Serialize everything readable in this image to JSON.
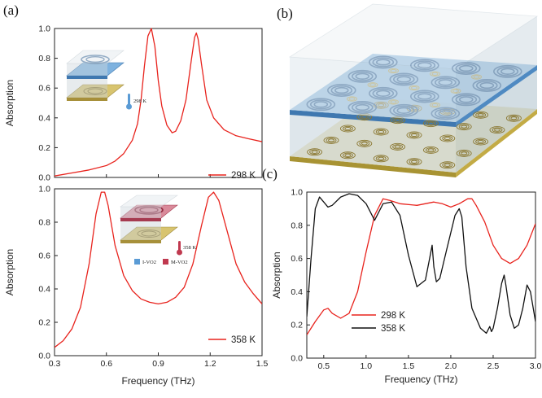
{
  "panels": {
    "a": "(a)",
    "b": "(b)",
    "c": "(c)"
  },
  "inset_top_label": "298 K",
  "inset_bottom_label": "358 K",
  "inset_legend": [
    "I-VO2",
    "M-VO2"
  ],
  "colors": {
    "red": "#e8231d",
    "black": "#111111",
    "lvo2": "#5a9bd5",
    "mvo2": "#c0394f"
  },
  "chart_data": [
    {
      "type": "line",
      "panel": "(a) top",
      "ylabel": "Absorption",
      "xlim": [
        0.3,
        1.5
      ],
      "ylim": [
        0.0,
        1.0
      ],
      "yticks": [
        "0.0",
        "0.2",
        "0.4",
        "0.6",
        "0.8",
        "1.0"
      ],
      "series": [
        {
          "name": "298 K",
          "color": "#e8231d",
          "x": [
            0.3,
            0.4,
            0.5,
            0.6,
            0.65,
            0.7,
            0.75,
            0.78,
            0.8,
            0.82,
            0.84,
            0.86,
            0.88,
            0.9,
            0.92,
            0.95,
            0.98,
            1.0,
            1.03,
            1.06,
            1.09,
            1.11,
            1.12,
            1.13,
            1.15,
            1.18,
            1.22,
            1.28,
            1.35,
            1.42,
            1.5
          ],
          "y": [
            0.01,
            0.03,
            0.05,
            0.08,
            0.11,
            0.16,
            0.25,
            0.36,
            0.52,
            0.75,
            0.95,
            1.0,
            0.88,
            0.65,
            0.48,
            0.35,
            0.3,
            0.31,
            0.38,
            0.52,
            0.78,
            0.94,
            0.97,
            0.93,
            0.76,
            0.52,
            0.4,
            0.32,
            0.28,
            0.26,
            0.24
          ]
        }
      ]
    },
    {
      "type": "line",
      "panel": "(a) bottom",
      "xlabel": "Frequency (THz)",
      "ylabel": "Absorption",
      "xlim": [
        0.3,
        1.5
      ],
      "ylim": [
        0.0,
        1.0
      ],
      "xticks": [
        "0.3",
        "0.6",
        "0.9",
        "1.2",
        "1.5"
      ],
      "yticks": [
        "0.0",
        "0.2",
        "0.4",
        "0.6",
        "0.8",
        "1.0"
      ],
      "series": [
        {
          "name": "358 K",
          "color": "#e8231d",
          "x": [
            0.3,
            0.35,
            0.4,
            0.45,
            0.5,
            0.54,
            0.57,
            0.59,
            0.61,
            0.65,
            0.7,
            0.75,
            0.8,
            0.85,
            0.9,
            0.95,
            1.0,
            1.05,
            1.1,
            1.15,
            1.19,
            1.22,
            1.25,
            1.3,
            1.35,
            1.4,
            1.45,
            1.5
          ],
          "y": [
            0.05,
            0.09,
            0.16,
            0.29,
            0.55,
            0.85,
            0.98,
            0.98,
            0.9,
            0.66,
            0.48,
            0.39,
            0.34,
            0.32,
            0.31,
            0.32,
            0.35,
            0.41,
            0.55,
            0.78,
            0.95,
            0.98,
            0.93,
            0.74,
            0.55,
            0.44,
            0.37,
            0.31
          ]
        }
      ]
    },
    {
      "type": "line",
      "panel": "(c)",
      "xlabel": "Frequency (THz)",
      "ylabel": "Absorption",
      "xlim": [
        0.3,
        3.0
      ],
      "ylim": [
        0.0,
        1.0
      ],
      "xticks": [
        "0.5",
        "1.0",
        "1.5",
        "2.0",
        "2.5",
        "3.0"
      ],
      "yticks": [
        "0.0",
        "0.2",
        "0.4",
        "0.6",
        "0.8",
        "1.0"
      ],
      "legend": "lower-left",
      "series": [
        {
          "name": "298 K",
          "color": "#e8231d",
          "x": [
            0.3,
            0.4,
            0.5,
            0.55,
            0.6,
            0.7,
            0.8,
            0.9,
            1.0,
            1.1,
            1.2,
            1.28,
            1.4,
            1.6,
            1.8,
            1.9,
            2.0,
            2.1,
            2.2,
            2.25,
            2.3,
            2.4,
            2.5,
            2.6,
            2.7,
            2.8,
            2.9,
            3.0
          ],
          "y": [
            0.14,
            0.22,
            0.29,
            0.3,
            0.27,
            0.24,
            0.27,
            0.4,
            0.64,
            0.86,
            0.96,
            0.95,
            0.93,
            0.92,
            0.94,
            0.93,
            0.91,
            0.93,
            0.96,
            0.96,
            0.92,
            0.82,
            0.68,
            0.6,
            0.57,
            0.6,
            0.68,
            0.81
          ]
        }
      ]
    },
    {
      "type": "line",
      "panel": "(c)",
      "series": [
        {
          "name": "358 K",
          "color": "#111111",
          "x": [
            0.3,
            0.35,
            0.4,
            0.45,
            0.5,
            0.55,
            0.6,
            0.7,
            0.8,
            0.9,
            1.0,
            1.1,
            1.2,
            1.3,
            1.4,
            1.5,
            1.6,
            1.7,
            1.75,
            1.78,
            1.8,
            1.83,
            1.87,
            1.95,
            2.05,
            2.1,
            2.13,
            2.18,
            2.25,
            2.35,
            2.42,
            2.46,
            2.48,
            2.5,
            2.55,
            2.6,
            2.63,
            2.65,
            2.7,
            2.75,
            2.8,
            2.85,
            2.9,
            2.94,
            3.0
          ],
          "y": [
            0.25,
            0.6,
            0.9,
            0.97,
            0.94,
            0.91,
            0.92,
            0.97,
            0.99,
            0.98,
            0.93,
            0.83,
            0.93,
            0.94,
            0.86,
            0.62,
            0.43,
            0.47,
            0.6,
            0.68,
            0.55,
            0.46,
            0.48,
            0.65,
            0.86,
            0.9,
            0.85,
            0.55,
            0.3,
            0.18,
            0.15,
            0.19,
            0.16,
            0.18,
            0.3,
            0.45,
            0.5,
            0.44,
            0.26,
            0.18,
            0.2,
            0.3,
            0.44,
            0.4,
            0.22
          ]
        }
      ]
    }
  ]
}
